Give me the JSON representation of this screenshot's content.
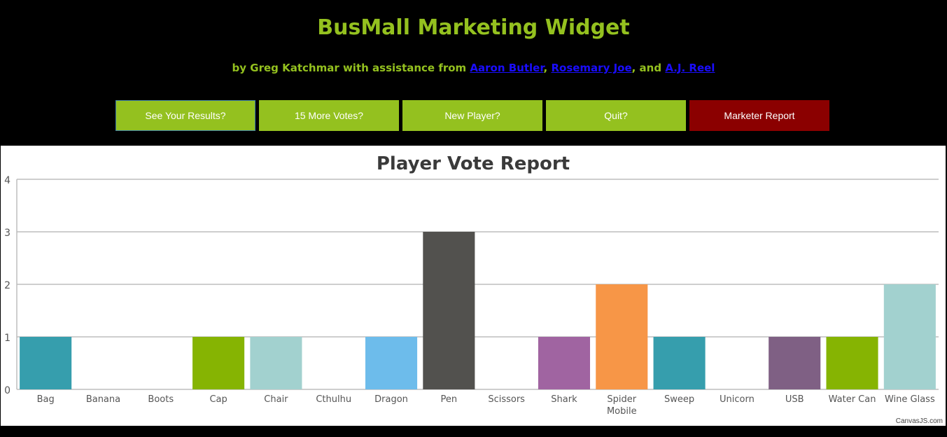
{
  "header": {
    "title": "BusMall Marketing Widget",
    "byline_prefix": "by Greg Katchmar with assistance from ",
    "contributors": [
      "Aaron Butler",
      "Rosemary Joe",
      "A.J. Reel"
    ],
    "sep1": ", ",
    "sep2": ", and "
  },
  "buttons": {
    "results": "See Your Results?",
    "more_votes": "15 More Votes?",
    "new_player": "New Player?",
    "quit": "Quit?",
    "marketer": "Marketer Report"
  },
  "colors": {
    "accent": "#94c11f",
    "marketer": "#8b0000",
    "link": "#1a0dff"
  },
  "chart_credit": "CanvasJS.com",
  "chart_data": {
    "type": "bar",
    "title": "Player Vote Report",
    "xlabel": "",
    "ylabel": "",
    "ylim": [
      0,
      4
    ],
    "yticks": [
      0,
      1,
      2,
      3,
      4
    ],
    "grid": true,
    "categories": [
      "Bag",
      "Banana",
      "Boots",
      "Cap",
      "Chair",
      "Cthulhu",
      "Dragon",
      "Pen",
      "Scissors",
      "Shark",
      "Spider Mobile",
      "Sweep",
      "Unicorn",
      "USB",
      "Water Can",
      "Wine Glass"
    ],
    "values": [
      1,
      0,
      0,
      1,
      1,
      0,
      1,
      3,
      0,
      1,
      2,
      1,
      0,
      1,
      1,
      2
    ],
    "colors": [
      "#369ead",
      "#c24642",
      "#7f6084",
      "#86b402",
      "#a2d1cf",
      "#c8b631",
      "#6dbceb",
      "#52514e",
      "#4f81bc",
      "#a064a1",
      "#f79647",
      "#369ead",
      "#c24642",
      "#7f6084",
      "#86b402",
      "#a2d1cf"
    ]
  }
}
